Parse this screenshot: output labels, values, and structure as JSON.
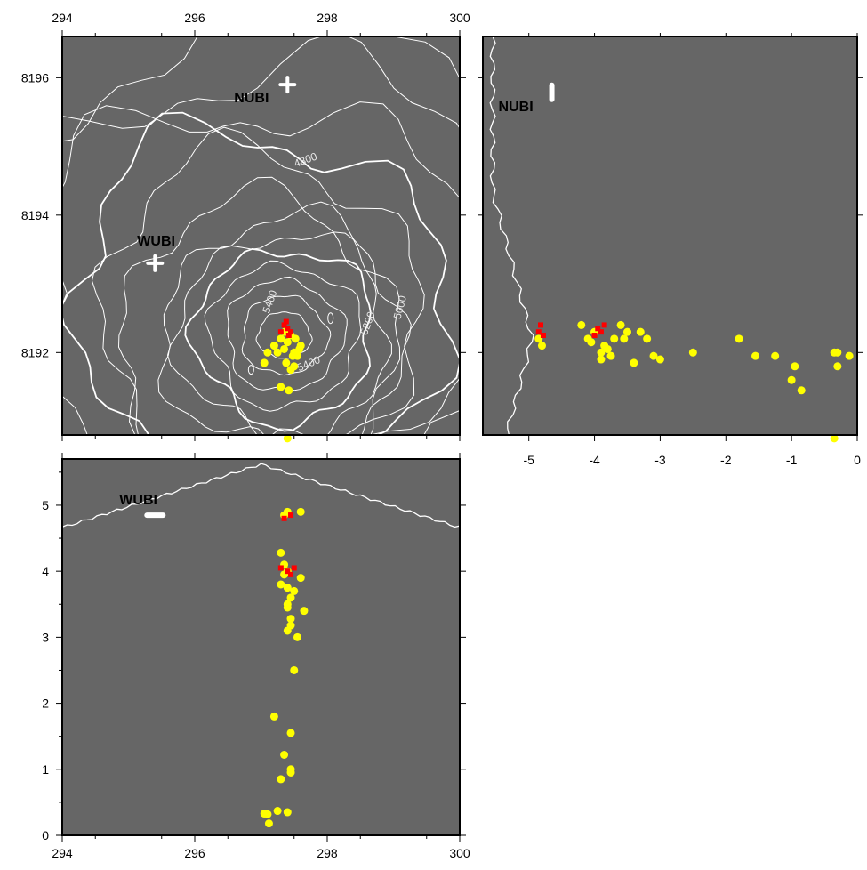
{
  "colors": {
    "panel_fill": "#666666",
    "frame": "#000000",
    "contour": "#ffffff",
    "event_yellow": "#ffff00",
    "event_red": "#ff0000",
    "station": "#ffffff"
  },
  "chart_data": [
    {
      "id": "map",
      "type": "scatter",
      "xlim": [
        294,
        300
      ],
      "ylim": [
        8190.8,
        8196.6
      ],
      "x_ticks_top": [
        "294",
        "296",
        "298",
        "300"
      ],
      "y_ticks": [
        "8196",
        "8194",
        "8192"
      ],
      "contour_labels": [
        "4800",
        "5400",
        "5000",
        "5200",
        "5400"
      ],
      "stations": [
        {
          "name": "NUBI",
          "x": 297.4,
          "y": 8195.9
        },
        {
          "name": "WUBI",
          "x": 295.4,
          "y": 8193.3
        }
      ],
      "series": [
        {
          "color_key": "event_yellow",
          "points": [
            [
              297.2,
              8192.1
            ],
            [
              297.3,
              8192.2
            ],
            [
              297.35,
              8192.05
            ],
            [
              297.4,
              8192.15
            ],
            [
              297.45,
              8192.25
            ],
            [
              297.5,
              8192.0
            ],
            [
              297.55,
              8191.95
            ],
            [
              297.6,
              8192.1
            ],
            [
              297.38,
              8191.85
            ],
            [
              297.45,
              8191.75
            ],
            [
              297.3,
              8191.5
            ],
            [
              297.42,
              8191.45
            ],
            [
              297.1,
              8192.0
            ],
            [
              297.05,
              8191.85
            ],
            [
              297.48,
              8191.95
            ],
            [
              297.52,
              8192.2
            ],
            [
              297.36,
              8192.3
            ],
            [
              297.5,
              8191.8
            ],
            [
              297.4,
              8190.75
            ],
            [
              297.25,
              8192.0
            ],
            [
              297.58,
              8192.05
            ]
          ]
        },
        {
          "color_key": "event_red",
          "points": [
            [
              297.35,
              8192.4
            ],
            [
              297.4,
              8192.35
            ],
            [
              297.45,
              8192.3
            ],
            [
              297.3,
              8192.3
            ],
            [
              297.38,
              8192.45
            ],
            [
              297.42,
              8192.25
            ]
          ]
        }
      ]
    },
    {
      "id": "east-section",
      "type": "scatter",
      "xlim": [
        -5.7,
        0
      ],
      "ylim": [
        8190.8,
        8196.6
      ],
      "x_ticks": [
        "-5",
        "-4",
        "-3",
        "-2",
        "-1",
        "0"
      ],
      "stations": [
        {
          "name": "NUBI",
          "x": -4.65,
          "y": 8195.8
        }
      ],
      "series": [
        {
          "color_key": "event_yellow",
          "points": [
            [
              -4.85,
              8192.2
            ],
            [
              -4.8,
              8192.1
            ],
            [
              -4.2,
              8192.4
            ],
            [
              -4.1,
              8192.2
            ],
            [
              -4.0,
              8192.3
            ],
            [
              -3.9,
              8192.0
            ],
            [
              -3.85,
              8192.1
            ],
            [
              -3.8,
              8192.05
            ],
            [
              -3.75,
              8191.95
            ],
            [
              -3.7,
              8192.2
            ],
            [
              -3.6,
              8192.4
            ],
            [
              -3.55,
              8192.2
            ],
            [
              -3.5,
              8192.3
            ],
            [
              -3.4,
              8191.85
            ],
            [
              -3.3,
              8192.3
            ],
            [
              -3.2,
              8192.2
            ],
            [
              -3.1,
              8191.95
            ],
            [
              -3.0,
              8191.9
            ],
            [
              -2.5,
              8192.0
            ],
            [
              -1.8,
              8192.2
            ],
            [
              -1.55,
              8191.95
            ],
            [
              -1.25,
              8191.95
            ],
            [
              -1.0,
              8191.6
            ],
            [
              -0.95,
              8191.8
            ],
            [
              -0.85,
              8191.45
            ],
            [
              -0.35,
              8192.0
            ],
            [
              -0.3,
              8191.8
            ],
            [
              -0.12,
              8191.95
            ],
            [
              -0.35,
              8190.75
            ],
            [
              -0.3,
              8192.0
            ],
            [
              -3.9,
              8191.9
            ],
            [
              -4.05,
              8192.15
            ]
          ]
        },
        {
          "color_key": "event_red",
          "points": [
            [
              -4.85,
              8192.3
            ],
            [
              -4.82,
              8192.4
            ],
            [
              -4.78,
              8192.25
            ],
            [
              -3.95,
              8192.35
            ],
            [
              -3.9,
              8192.3
            ],
            [
              -4.0,
              8192.25
            ],
            [
              -3.85,
              8192.4
            ]
          ]
        }
      ]
    },
    {
      "id": "north-section",
      "type": "scatter",
      "xlim": [
        294,
        300
      ],
      "ylim": [
        0,
        5.7
      ],
      "x_ticks_bottom": [
        "294",
        "296",
        "298",
        "300"
      ],
      "y_ticks": [
        "0",
        "1",
        "2",
        "3",
        "4",
        "5"
      ],
      "stations": [
        {
          "name": "WUBI",
          "x": 295.4,
          "y": 4.85
        }
      ],
      "series": [
        {
          "color_key": "event_yellow",
          "points": [
            [
              297.35,
              4.85
            ],
            [
              297.4,
              4.9
            ],
            [
              297.6,
              4.9
            ],
            [
              297.3,
              4.28
            ],
            [
              297.35,
              4.1
            ],
            [
              297.4,
              4.0
            ],
            [
              297.3,
              3.8
            ],
            [
              297.4,
              3.75
            ],
            [
              297.45,
              3.6
            ],
            [
              297.4,
              3.5
            ],
            [
              297.4,
              3.45
            ],
            [
              297.45,
              3.28
            ],
            [
              297.45,
              3.18
            ],
            [
              297.4,
              3.1
            ],
            [
              297.55,
              3.0
            ],
            [
              297.65,
              3.4
            ],
            [
              297.5,
              3.7
            ],
            [
              297.6,
              3.9
            ],
            [
              297.35,
              3.95
            ],
            [
              297.5,
              2.5
            ],
            [
              297.2,
              1.8
            ],
            [
              297.45,
              1.55
            ],
            [
              297.35,
              1.22
            ],
            [
              297.45,
              1.0
            ],
            [
              297.45,
              0.95
            ],
            [
              297.3,
              0.85
            ],
            [
              297.05,
              0.33
            ],
            [
              297.1,
              0.32
            ],
            [
              297.25,
              0.37
            ],
            [
              297.4,
              0.35
            ],
            [
              297.12,
              0.18
            ]
          ]
        },
        {
          "color_key": "event_red",
          "points": [
            [
              297.35,
              4.8
            ],
            [
              297.45,
              4.85
            ],
            [
              297.3,
              4.05
            ],
            [
              297.4,
              4.0
            ],
            [
              297.45,
              3.95
            ],
            [
              297.5,
              4.05
            ]
          ]
        }
      ]
    }
  ]
}
